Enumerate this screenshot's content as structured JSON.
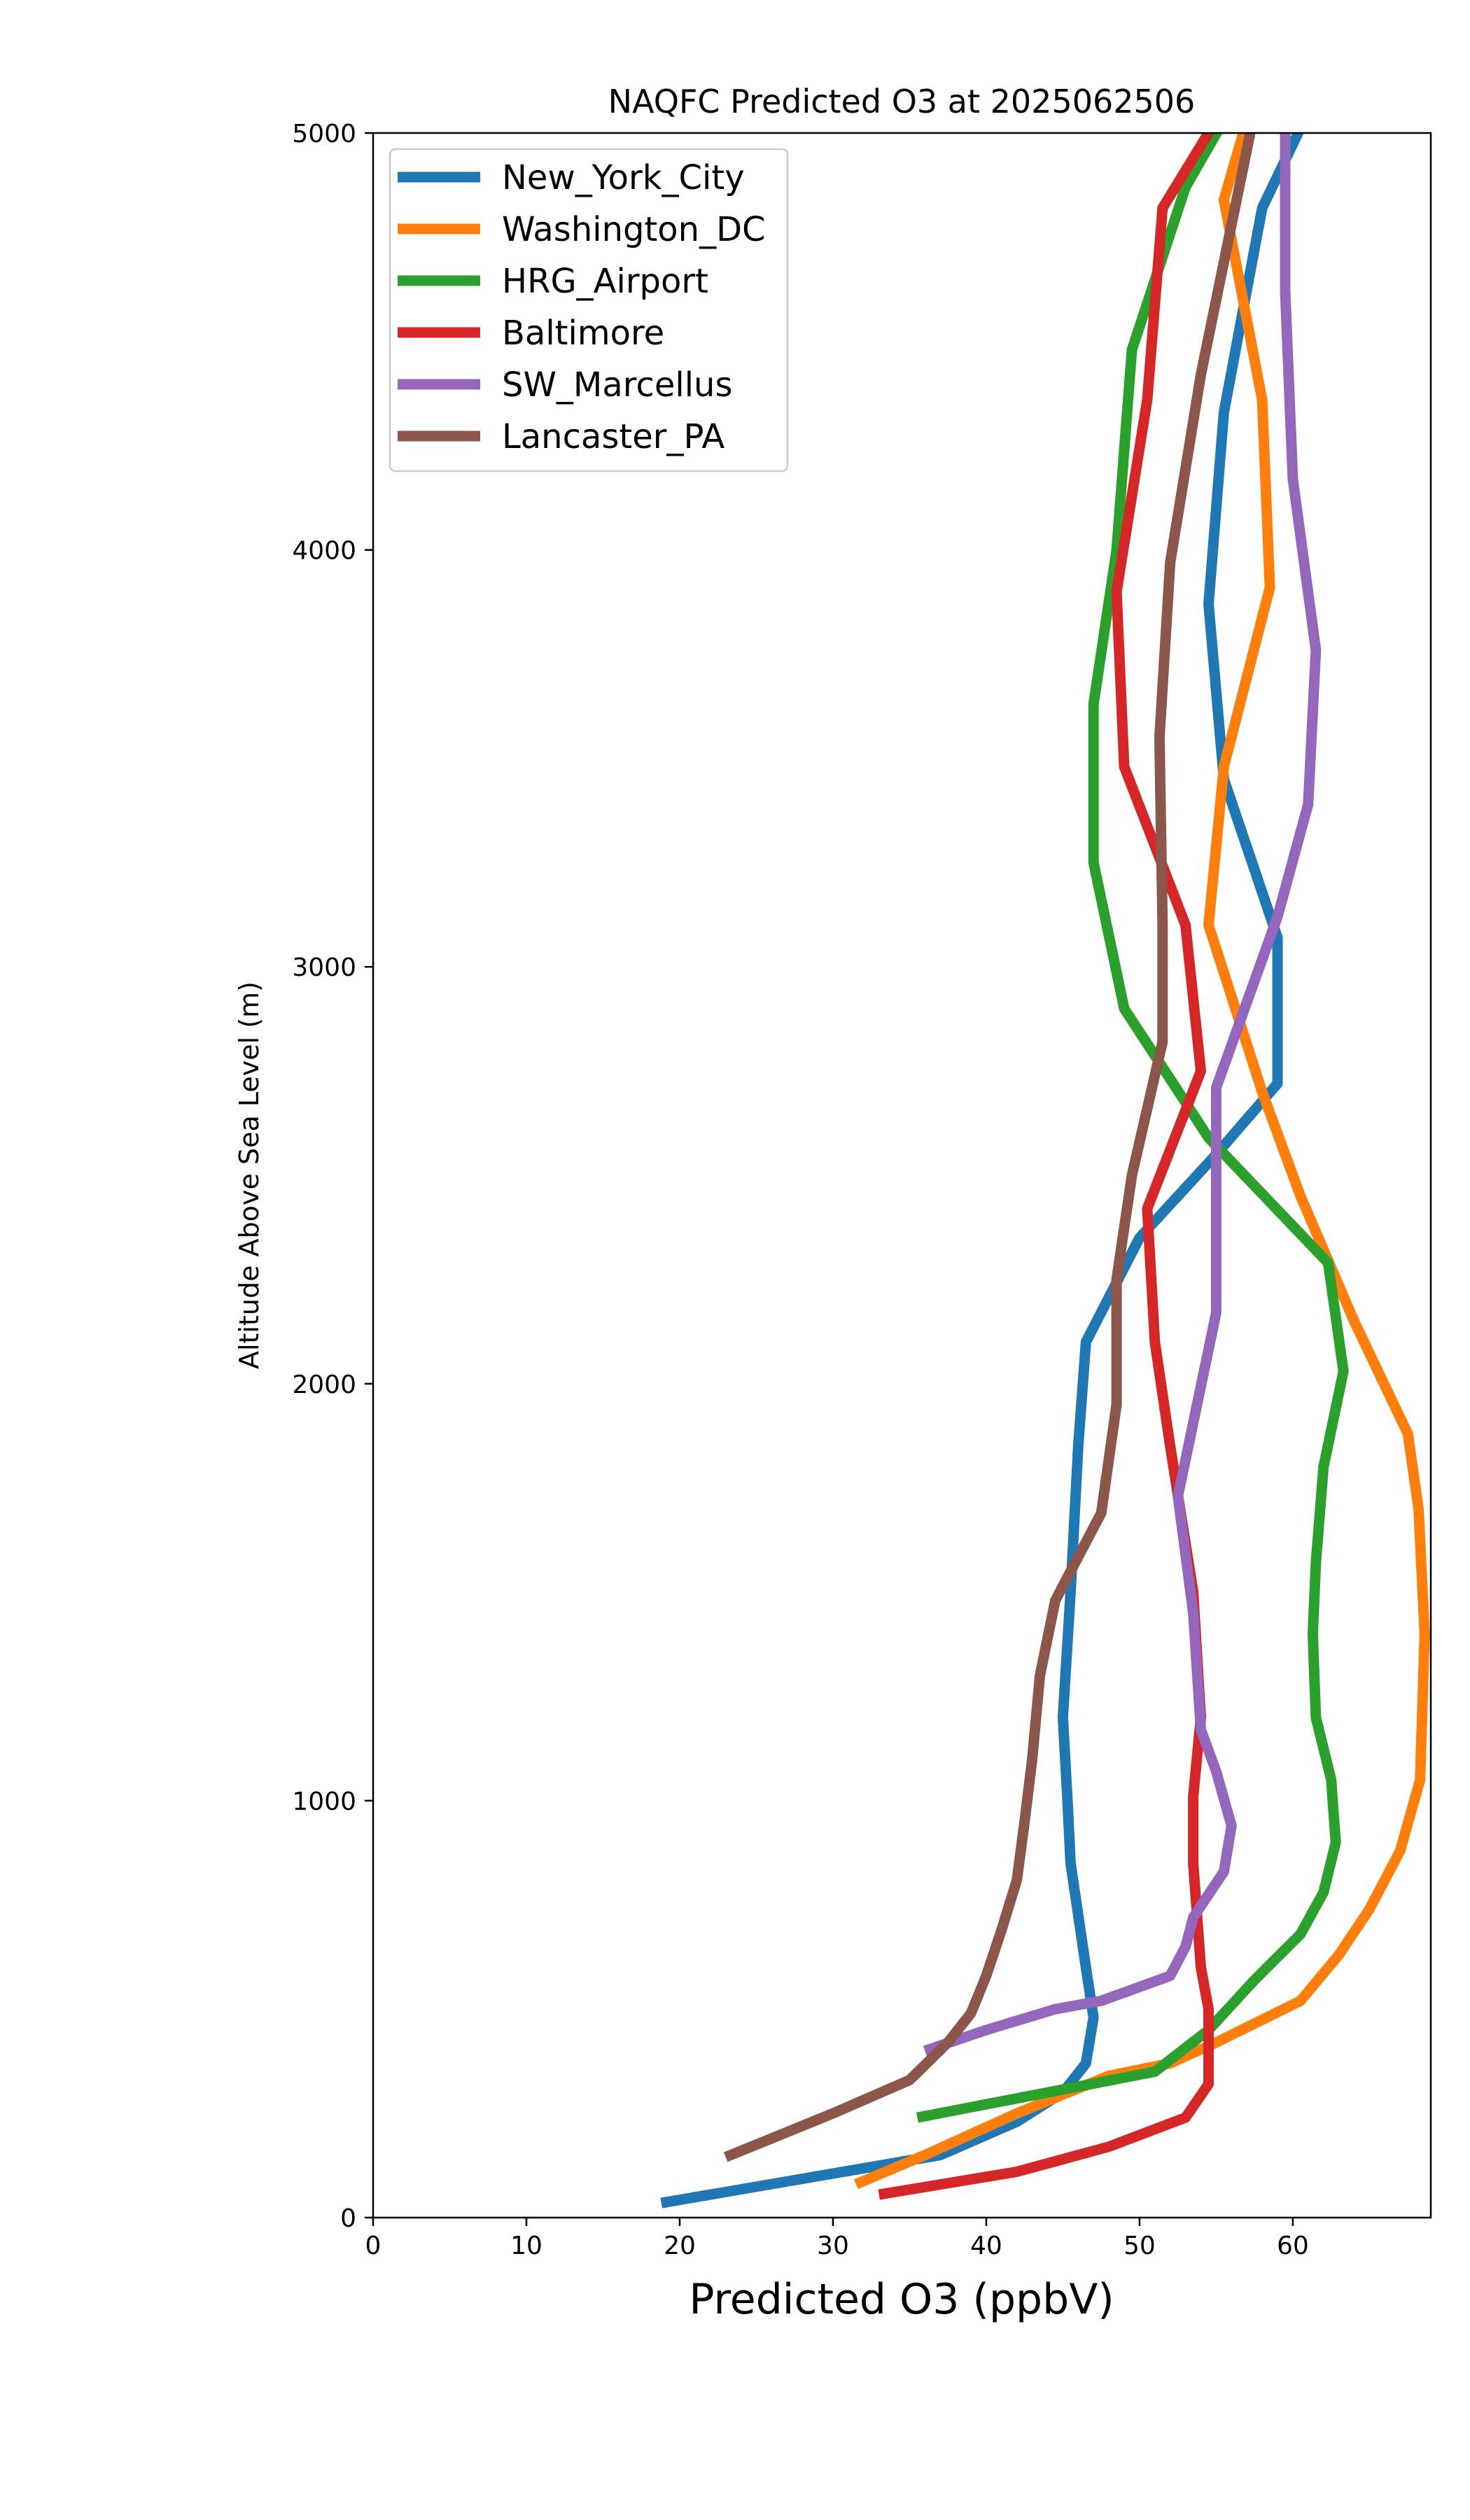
{
  "chart_data": {
    "type": "line",
    "title": "NAQFC Predicted O3 at 2025062506",
    "xlabel": "Predicted O3 (ppbV)",
    "ylabel": "Altitude Above Sea Level (m)",
    "xlim": [
      0,
      69
    ],
    "ylim": [
      0,
      5000
    ],
    "xticks": [
      0,
      10,
      20,
      30,
      40,
      50,
      60
    ],
    "yticks": [
      0,
      1000,
      2000,
      3000,
      4000,
      5000
    ],
    "grid": false,
    "legend_position": "upper-left",
    "series": [
      {
        "name": "New_York_City",
        "color": "#1f77b4",
        "points": [
          [
            18.8,
            35
          ],
          [
            37,
            150
          ],
          [
            42,
            230
          ],
          [
            45,
            300
          ],
          [
            46.5,
            370
          ],
          [
            47,
            480
          ],
          [
            46.5,
            600
          ],
          [
            45.5,
            850
          ],
          [
            45.3,
            1000
          ],
          [
            45,
            1200
          ],
          [
            45.5,
            1500
          ],
          [
            46,
            1850
          ],
          [
            46.5,
            2100
          ],
          [
            50,
            2350
          ],
          [
            55,
            2550
          ],
          [
            59,
            2720
          ],
          [
            59,
            3070
          ],
          [
            55.5,
            3450
          ],
          [
            54.5,
            3870
          ],
          [
            55.5,
            4330
          ],
          [
            58,
            4820
          ],
          [
            61,
            5050
          ]
        ]
      },
      {
        "name": "Washington_DC",
        "color": "#ff7f0e",
        "points": [
          [
            31.5,
            80
          ],
          [
            36,
            150
          ],
          [
            42,
            250
          ],
          [
            48,
            340
          ],
          [
            52,
            370
          ],
          [
            55,
            420
          ],
          [
            60.5,
            520
          ],
          [
            63,
            630
          ],
          [
            65,
            740
          ],
          [
            67,
            880
          ],
          [
            68.3,
            1050
          ],
          [
            68.6,
            1400
          ],
          [
            68.2,
            1700
          ],
          [
            67.5,
            1880
          ],
          [
            64,
            2150
          ],
          [
            60.5,
            2450
          ],
          [
            58,
            2700
          ],
          [
            54.5,
            3100
          ],
          [
            55.5,
            3480
          ],
          [
            58.5,
            3910
          ],
          [
            58,
            4360
          ],
          [
            55.5,
            4840
          ],
          [
            57,
            5030
          ]
        ]
      },
      {
        "name": "HRG_Airport",
        "color": "#2ca02c",
        "points": [
          [
            35.5,
            240
          ],
          [
            44,
            300
          ],
          [
            51,
            350
          ],
          [
            54.5,
            450
          ],
          [
            57.5,
            570
          ],
          [
            60.5,
            680
          ],
          [
            62,
            780
          ],
          [
            62.8,
            900
          ],
          [
            62.5,
            1050
          ],
          [
            61.5,
            1200
          ],
          [
            61.3,
            1400
          ],
          [
            61.5,
            1570
          ],
          [
            62,
            1800
          ],
          [
            63.3,
            2030
          ],
          [
            62.3,
            2290
          ],
          [
            54.5,
            2590
          ],
          [
            49,
            2900
          ],
          [
            47,
            3250
          ],
          [
            47,
            3630
          ],
          [
            48.5,
            4000
          ],
          [
            49.5,
            4480
          ],
          [
            53,
            4870
          ],
          [
            55.5,
            5030
          ]
        ]
      },
      {
        "name": "Baltimore",
        "color": "#d62728",
        "points": [
          [
            33,
            55
          ],
          [
            42,
            110
          ],
          [
            48,
            170
          ],
          [
            53,
            240
          ],
          [
            54.5,
            320
          ],
          [
            54.5,
            500
          ],
          [
            54,
            600
          ],
          [
            53.5,
            850
          ],
          [
            53.5,
            1010
          ],
          [
            54,
            1200
          ],
          [
            53.5,
            1500
          ],
          [
            52,
            1850
          ],
          [
            51,
            2100
          ],
          [
            50.5,
            2420
          ],
          [
            54,
            2750
          ],
          [
            53,
            3100
          ],
          [
            49,
            3480
          ],
          [
            48.5,
            3900
          ],
          [
            50.5,
            4360
          ],
          [
            51.5,
            4820
          ],
          [
            55,
            5030
          ]
        ]
      },
      {
        "name": "SW_Marcellus",
        "color": "#9467bd",
        "points": [
          [
            36,
            400
          ],
          [
            40,
            450
          ],
          [
            44.5,
            500
          ],
          [
            47.5,
            520
          ],
          [
            52,
            580
          ],
          [
            53,
            650
          ],
          [
            53.5,
            720
          ],
          [
            55.5,
            830
          ],
          [
            56,
            940
          ],
          [
            55,
            1070
          ],
          [
            54,
            1170
          ],
          [
            53.5,
            1450
          ],
          [
            52.5,
            1730
          ],
          [
            55,
            2170
          ],
          [
            55,
            2710
          ],
          [
            59,
            3120
          ],
          [
            61,
            3390
          ],
          [
            61.5,
            3760
          ],
          [
            60,
            4170
          ],
          [
            59.5,
            4620
          ],
          [
            59.5,
            5050
          ]
        ]
      },
      {
        "name": "Lancaster_PA",
        "color": "#8c564b",
        "points": [
          [
            23,
            145
          ],
          [
            30,
            250
          ],
          [
            35,
            330
          ],
          [
            37.5,
            420
          ],
          [
            39,
            490
          ],
          [
            40,
            580
          ],
          [
            41,
            690
          ],
          [
            42,
            810
          ],
          [
            42.5,
            950
          ],
          [
            43,
            1100
          ],
          [
            43.5,
            1300
          ],
          [
            44.5,
            1480
          ],
          [
            47.5,
            1690
          ],
          [
            48.5,
            1950
          ],
          [
            48.5,
            2250
          ],
          [
            49.5,
            2500
          ],
          [
            51.5,
            2820
          ],
          [
            51.5,
            3100
          ],
          [
            51.3,
            3550
          ],
          [
            52,
            3970
          ],
          [
            54,
            4420
          ],
          [
            56,
            4780
          ],
          [
            57.5,
            5050
          ]
        ]
      }
    ]
  }
}
